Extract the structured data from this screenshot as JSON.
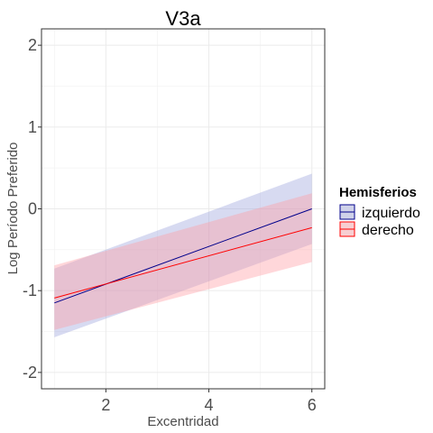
{
  "chart_data": {
    "type": "line",
    "title": "V3a",
    "xlabel": "Excentridad",
    "ylabel": "Log Período Preferido",
    "xlim": [
      0.75,
      6.25
    ],
    "ylim": [
      -2.2,
      2.2
    ],
    "x_ticks": [
      2,
      4,
      6
    ],
    "y_ticks": [
      -2,
      -1,
      0,
      1,
      2
    ],
    "x_tick_labels": [
      "2",
      "4",
      "6"
    ],
    "y_tick_labels": [
      "-2",
      "-1",
      "0",
      "1",
      "2"
    ],
    "grid": true,
    "legend": {
      "title": "Hemisferios",
      "position": "right"
    },
    "series": [
      {
        "name": "izquierdo",
        "line_color": "#00008b",
        "fill_color": "#9aa2dc",
        "x": [
          1,
          6
        ],
        "y": [
          -1.15,
          0.0
        ],
        "ci_lower": [
          -1.57,
          -0.43
        ],
        "ci_upper": [
          -0.73,
          0.43
        ]
      },
      {
        "name": "derecho",
        "line_color": "#ff0000",
        "fill_color": "#ff9aa2",
        "x": [
          1,
          6
        ],
        "y": [
          -1.09,
          -0.23
        ],
        "ci_lower": [
          -1.48,
          -0.65
        ],
        "ci_upper": [
          -0.69,
          0.19
        ]
      }
    ]
  }
}
